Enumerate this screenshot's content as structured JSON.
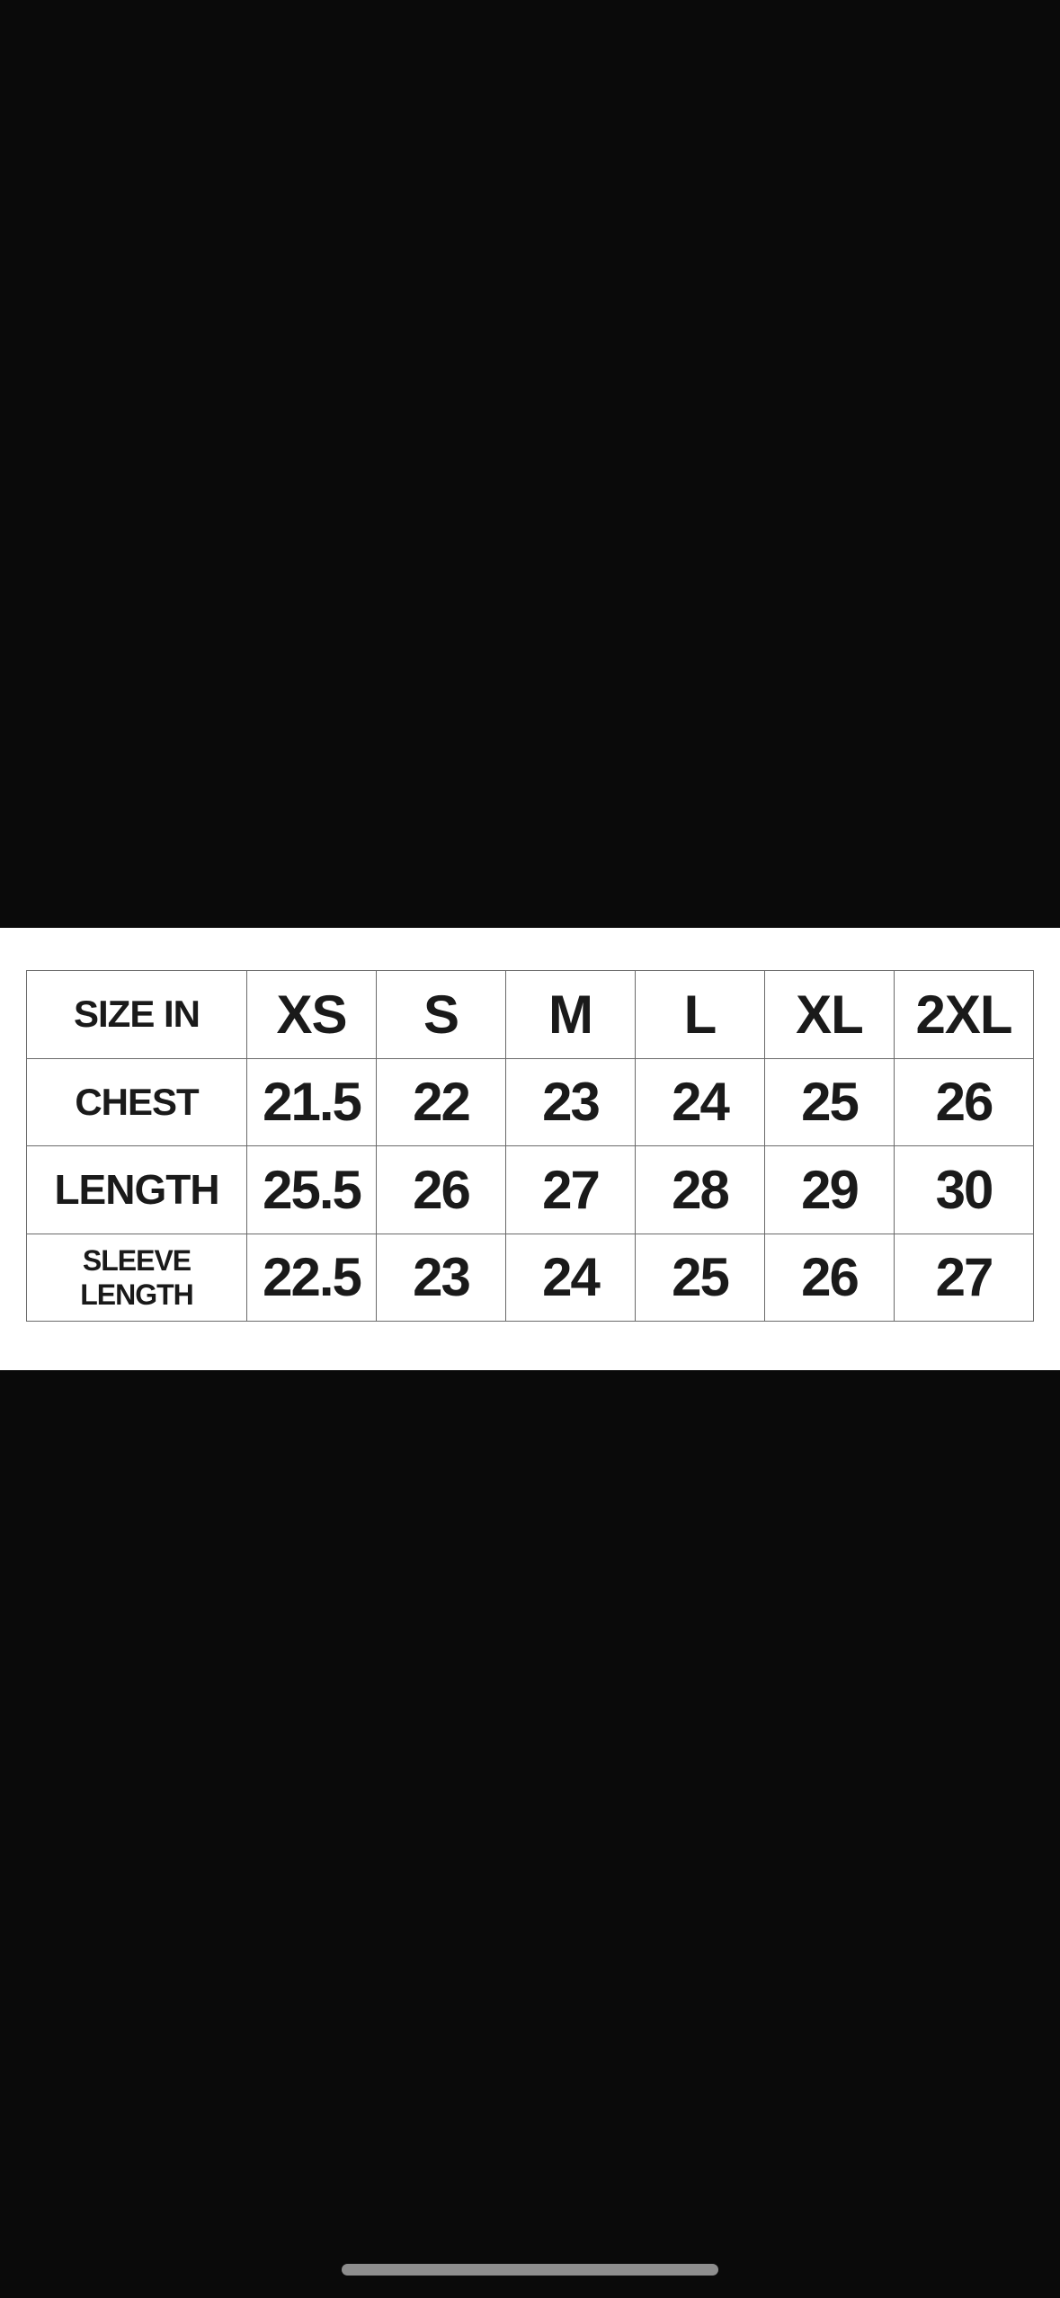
{
  "size_chart": {
    "corner_label": "SIZE IN",
    "sizes": [
      "XS",
      "S",
      "M",
      "L",
      "XL",
      "2XL"
    ],
    "rows": [
      {
        "label": "CHEST",
        "values": [
          "21.5",
          "22",
          "23",
          "24",
          "25",
          "26"
        ]
      },
      {
        "label": "LENGTH",
        "values": [
          "25.5",
          "26",
          "27",
          "28",
          "29",
          "30"
        ]
      },
      {
        "label_line1": "SLEEVE",
        "label_line2": "LENGTH",
        "values": [
          "22.5",
          "23",
          "24",
          "25",
          "26",
          "27"
        ]
      }
    ]
  },
  "colors": {
    "background": "#0a0a0a",
    "panel": "#ffffff",
    "text": "#1a1a1a",
    "grid": "#6a6a6a"
  }
}
